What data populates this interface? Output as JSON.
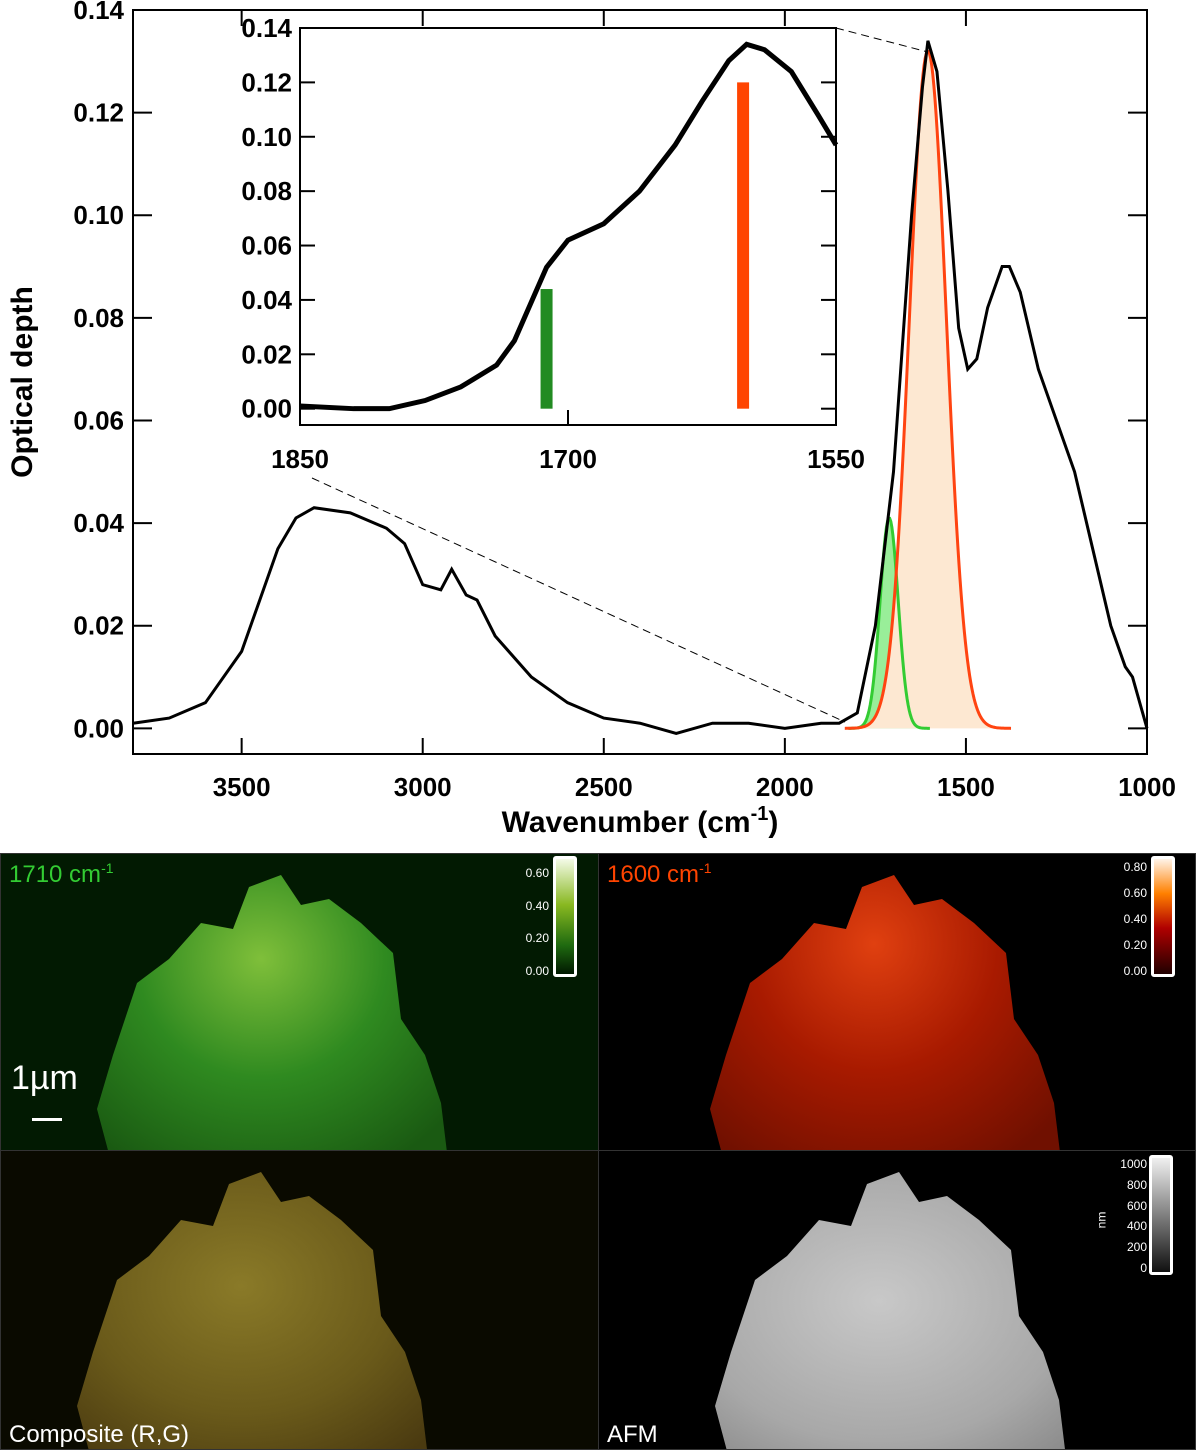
{
  "chart_data": [
    {
      "type": "line",
      "xlabel": "Wavenumber (cm",
      "xlabel_sup": "-1",
      "xlabel_end": ")",
      "ylabel": "Optical depth",
      "xlim": [
        3800,
        1000
      ],
      "ylim": [
        -0.005,
        0.14
      ],
      "xticks": [
        "3500",
        "3000",
        "2500",
        "2000",
        "1500",
        "1000"
      ],
      "yticks": [
        "0.00",
        "0.02",
        "0.04",
        "0.06",
        "0.08",
        "0.10",
        "0.12",
        "0.14"
      ],
      "spectrum": {
        "x": [
          3800,
          3700,
          3600,
          3500,
          3450,
          3400,
          3350,
          3300,
          3200,
          3100,
          3050,
          3000,
          2950,
          2920,
          2880,
          2850,
          2800,
          2700,
          2600,
          2500,
          2400,
          2300,
          2200,
          2100,
          2000,
          1900,
          1850,
          1800,
          1750,
          1700,
          1680,
          1650,
          1620,
          1605,
          1580,
          1550,
          1520,
          1495,
          1470,
          1440,
          1400,
          1380,
          1350,
          1300,
          1250,
          1200,
          1150,
          1100,
          1060,
          1040,
          1000
        ],
        "y": [
          0.001,
          0.002,
          0.005,
          0.015,
          0.025,
          0.035,
          0.041,
          0.043,
          0.042,
          0.039,
          0.036,
          0.028,
          0.027,
          0.031,
          0.026,
          0.025,
          0.018,
          0.01,
          0.005,
          0.002,
          0.001,
          -0.001,
          0.001,
          0.001,
          0.0,
          0.001,
          0.001,
          0.003,
          0.02,
          0.05,
          0.07,
          0.1,
          0.125,
          0.134,
          0.128,
          0.105,
          0.078,
          0.07,
          0.072,
          0.082,
          0.09,
          0.09,
          0.085,
          0.07,
          0.06,
          0.05,
          0.035,
          0.02,
          0.012,
          0.01,
          0.0
        ],
        "color": "#000000"
      },
      "gaussians": [
        {
          "center": 1712,
          "amplitude": 0.041,
          "sigma": 25,
          "color": "#33cc33",
          "fill": "#99ee99"
        },
        {
          "center": 1605,
          "amplitude": 0.132,
          "sigma": 51,
          "color": "#ff4411",
          "fill": "#fde8d2"
        }
      ]
    },
    {
      "type": "line",
      "inset": true,
      "xlim": [
        1850,
        1550
      ],
      "ylim": [
        -0.006,
        0.14
      ],
      "xticks": [
        "1850",
        "1700",
        "1550"
      ],
      "yticks": [
        "0.00",
        "0.02",
        "0.04",
        "0.06",
        "0.08",
        "0.10",
        "0.12",
        "0.14"
      ],
      "spectrum": {
        "x": [
          1850,
          1820,
          1800,
          1780,
          1760,
          1740,
          1730,
          1720,
          1712,
          1700,
          1680,
          1660,
          1640,
          1625,
          1610,
          1600,
          1590,
          1575,
          1560,
          1550
        ],
        "y": [
          0.001,
          0.0,
          0.0,
          0.003,
          0.008,
          0.016,
          0.025,
          0.04,
          0.052,
          0.062,
          0.068,
          0.08,
          0.097,
          0.113,
          0.128,
          0.134,
          0.132,
          0.124,
          0.108,
          0.097
        ]
      },
      "bars": [
        {
          "x": 1712,
          "value": 0.044,
          "color": "#228b22"
        },
        {
          "x": 1602,
          "value": 0.12,
          "color": "#ff4400"
        }
      ]
    }
  ],
  "panels": {
    "green": {
      "title": "1710 cm",
      "sup": "-1",
      "color": "#33cc33",
      "cbar_ticks": [
        "0.60",
        "0.40",
        "0.20",
        "0.00"
      ],
      "scalebar": "1µm"
    },
    "red": {
      "title": "1600 cm",
      "sup": "-1",
      "color": "#ff4400",
      "cbar_ticks": [
        "0.80",
        "0.60",
        "0.40",
        "0.20",
        "0.00"
      ]
    },
    "composite": {
      "title": "Composite (R,G)"
    },
    "afm": {
      "title": "AFM",
      "unit": "nm",
      "cbar_ticks": [
        "1000",
        "800",
        "600",
        "400",
        "200",
        "0"
      ]
    }
  }
}
